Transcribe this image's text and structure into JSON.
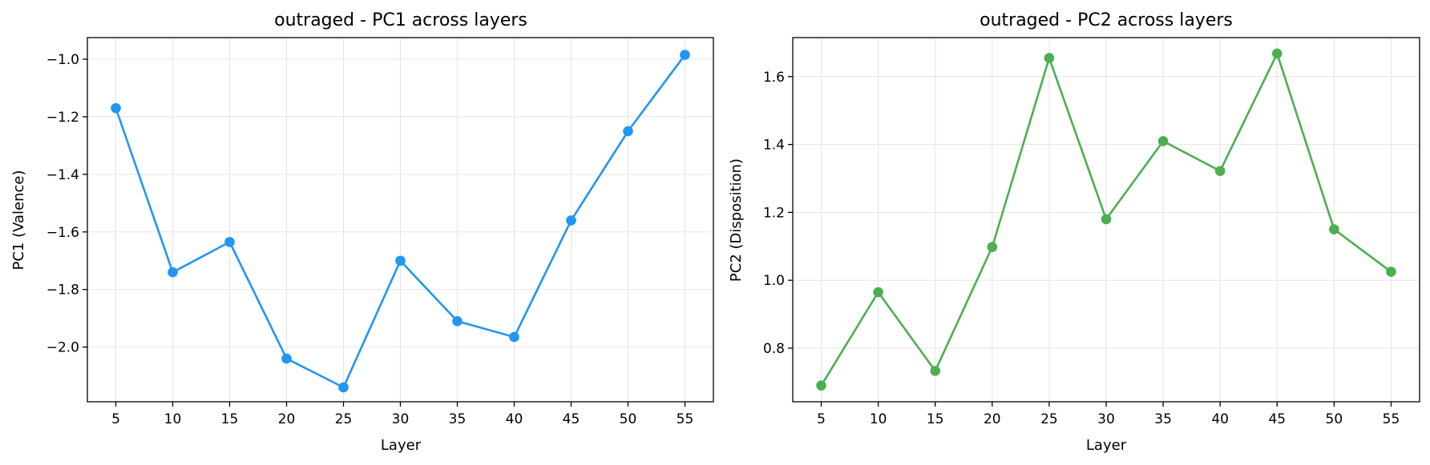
{
  "chart_data": [
    {
      "type": "line",
      "title": "outraged - PC1 across layers",
      "xlabel": "Layer",
      "ylabel": "PC1 (Valence)",
      "x": [
        5,
        10,
        15,
        20,
        25,
        30,
        35,
        40,
        45,
        50,
        55
      ],
      "series": [
        {
          "values": [
            -1.17,
            -1.74,
            -1.635,
            -2.04,
            -2.14,
            -1.7,
            -1.91,
            -1.965,
            -1.56,
            -1.25,
            -0.985
          ],
          "color": "#2196F3"
        }
      ],
      "xlim": [
        2.5,
        57.5
      ],
      "ylim": [
        -2.19,
        -0.925
      ],
      "xticks": [
        5,
        10,
        15,
        20,
        25,
        30,
        35,
        40,
        45,
        50,
        55
      ],
      "yticks": [
        -2.0,
        -1.8,
        -1.6,
        -1.4,
        -1.2,
        -1.0
      ],
      "ytick_labels": [
        "−2.0",
        "−1.8",
        "−1.6",
        "−1.4",
        "−1.2",
        "−1.0"
      ],
      "grid": true
    },
    {
      "type": "line",
      "title": "outraged - PC2 across layers",
      "xlabel": "Layer",
      "ylabel": "PC2 (Disposition)",
      "x": [
        5,
        10,
        15,
        20,
        25,
        30,
        35,
        40,
        45,
        50,
        55
      ],
      "series": [
        {
          "values": [
            0.69,
            0.965,
            0.733,
            1.098,
            1.655,
            1.18,
            1.41,
            1.322,
            1.668,
            1.15,
            1.025
          ],
          "color": "#4CAF50"
        }
      ],
      "xlim": [
        2.5,
        57.5
      ],
      "ylim": [
        0.642,
        1.715
      ],
      "xticks": [
        5,
        10,
        15,
        20,
        25,
        30,
        35,
        40,
        45,
        50,
        55
      ],
      "yticks": [
        0.8,
        1.0,
        1.2,
        1.4,
        1.6
      ],
      "ytick_labels": [
        "0.8",
        "1.0",
        "1.2",
        "1.4",
        "1.6"
      ],
      "grid": true
    }
  ]
}
